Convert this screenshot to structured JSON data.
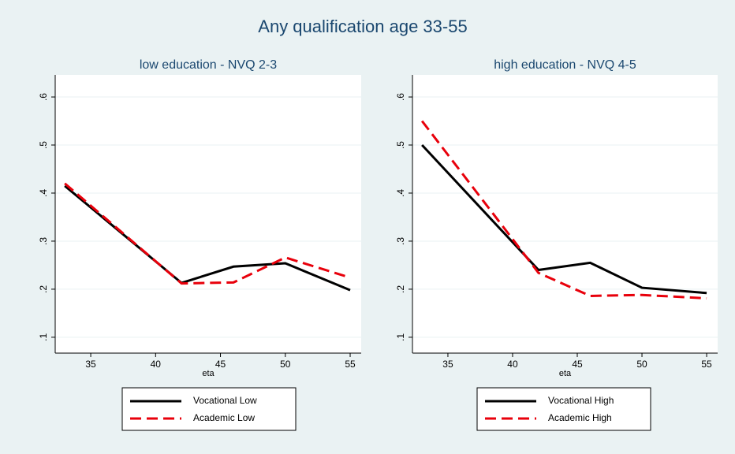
{
  "title": "Any qualification age 33-55",
  "chart_data": [
    {
      "type": "line",
      "title": "low education - NVQ 2-3",
      "xlabel": "eta",
      "x": [
        33,
        42,
        46,
        50,
        55
      ],
      "series": [
        {
          "name": "Vocational Low",
          "color": "#000000",
          "style": "solid",
          "values": [
            0.415,
            0.213,
            0.247,
            0.254,
            0.198
          ]
        },
        {
          "name": "Academic Low",
          "color": "#e8000b",
          "style": "dashed",
          "values": [
            0.42,
            0.212,
            0.214,
            0.266,
            0.224
          ]
        }
      ],
      "xlim": [
        32.26,
        55.85
      ],
      "xticks": [
        35,
        40,
        45,
        50,
        55
      ],
      "ylim": [
        0.067,
        0.646
      ],
      "yticks": [
        {
          "value": 0.1,
          "label": ".1"
        },
        {
          "value": 0.2,
          "label": ".2"
        },
        {
          "value": 0.3,
          "label": ".3"
        },
        {
          "value": 0.4,
          "label": ".4"
        },
        {
          "value": 0.5,
          "label": ".5"
        },
        {
          "value": 0.6,
          "label": ".6"
        }
      ],
      "grid": true
    },
    {
      "type": "line",
      "title": "high education - NVQ 4-5",
      "xlabel": "eta",
      "x": [
        33,
        42,
        46,
        50,
        55
      ],
      "series": [
        {
          "name": "Vocational High",
          "color": "#000000",
          "style": "solid",
          "values": [
            0.5,
            0.24,
            0.255,
            0.203,
            0.192
          ]
        },
        {
          "name": "Academic High",
          "color": "#e8000b",
          "style": "dashed",
          "values": [
            0.55,
            0.234,
            0.186,
            0.188,
            0.181
          ]
        }
      ],
      "xlim": [
        32.26,
        55.85
      ],
      "xticks": [
        35,
        40,
        45,
        50,
        55
      ],
      "ylim": [
        0.067,
        0.646
      ],
      "yticks": [
        {
          "value": 0.1,
          "label": ".1"
        },
        {
          "value": 0.2,
          "label": ".2"
        },
        {
          "value": 0.3,
          "label": ".3"
        },
        {
          "value": 0.4,
          "label": ".4"
        },
        {
          "value": 0.5,
          "label": ".5"
        },
        {
          "value": 0.6,
          "label": ".6"
        }
      ],
      "grid": true
    }
  ]
}
